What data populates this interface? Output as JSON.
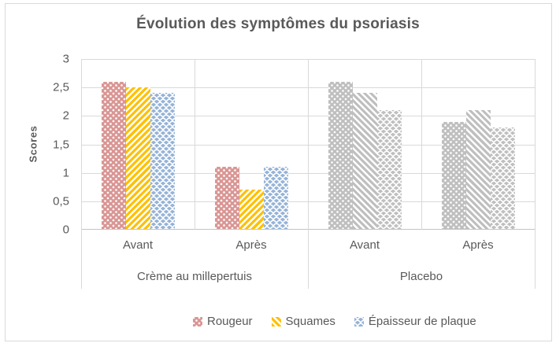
{
  "chart_data": {
    "type": "bar",
    "title": "Évolution des symptômes du psoriasis",
    "ylabel": "Scores",
    "ylim": [
      0,
      3
    ],
    "grid": true,
    "legend_position": "bottom",
    "ytick_labels": [
      "3",
      "2,5",
      "2",
      "1,5",
      "1",
      "0,5",
      "0"
    ],
    "ytick_values": [
      3,
      2.5,
      2,
      1.5,
      1,
      0.5,
      0
    ],
    "groups": [
      {
        "label": "Crème au millepertuis",
        "categories": [
          "Avant",
          "Après"
        ]
      },
      {
        "label": "Placebo",
        "categories": [
          "Avant",
          "Après"
        ]
      }
    ],
    "series": [
      {
        "name": "Rougeur",
        "pattern": "dots",
        "color": "#d99694",
        "values": [
          2.6,
          1.1,
          2.6,
          1.9
        ]
      },
      {
        "name": "Squames",
        "pattern": "diagonal-stripes",
        "color": "#ffc000",
        "values": [
          2.5,
          0.7,
          2.4,
          2.1
        ]
      },
      {
        "name": "Épaisseur de plaque",
        "pattern": "fish-scales",
        "color": "#95b3d7",
        "values": [
          2.4,
          1.1,
          2.1,
          1.8
        ]
      }
    ],
    "placebo_bar_color": "#bfbfbf",
    "notes": "Placebo group bars are drawn in gray while keeping each series' fill pattern"
  },
  "colors": {
    "title_text": "#595959",
    "axis_text": "#595959",
    "gridline": "#d9d9d9",
    "axis_line": "#c3c3c3",
    "chart_border": "#d9d9d9",
    "background": "#ffffff"
  }
}
